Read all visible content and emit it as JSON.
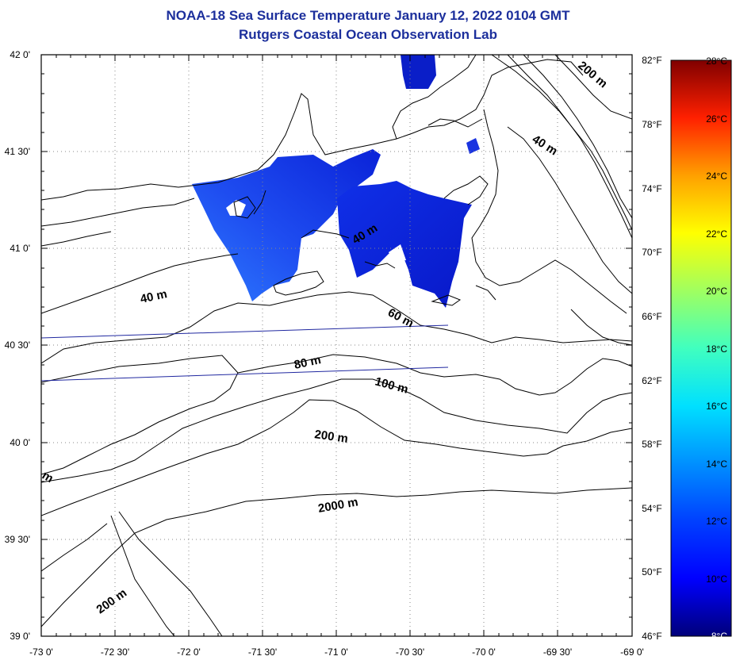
{
  "header": {
    "title": "NOAA-18 Sea Surface Temperature January 12, 2022 0104 GMT",
    "subtitle": "Rutgers Coastal Ocean Observation Lab"
  },
  "axes": {
    "lat_labels": [
      "42 0'",
      "41 30'",
      "41 0'",
      "40 30'",
      "40 0'",
      "39 30'",
      "39 0'"
    ],
    "lon_labels": [
      "-73 0'",
      "-72 30'",
      "-72 0'",
      "-71 30'",
      "-71 0'",
      "-70 30'",
      "-70 0'",
      "-69 30'",
      "-69 0'"
    ],
    "fahrenheit_labels": [
      "82°F",
      "78°F",
      "74°F",
      "70°F",
      "66°F",
      "62°F",
      "58°F",
      "54°F",
      "50°F",
      "46°F"
    ],
    "lat_range": [
      39.0,
      42.0
    ],
    "lon_range": [
      -73.0,
      -69.0
    ]
  },
  "colorbar": {
    "celsius_labels": [
      "28°C",
      "26°C",
      "24°C",
      "22°C",
      "20°C",
      "18°C",
      "16°C",
      "14°C",
      "12°C",
      "10°C",
      "8°C"
    ],
    "range_c": [
      8,
      28
    ],
    "range_f": [
      46,
      82
    ]
  },
  "contour_labels": [
    {
      "text": "200 m",
      "id": "ne"
    },
    {
      "text": "40 m",
      "id": "east"
    },
    {
      "text": "40 m",
      "id": "center"
    },
    {
      "text": "40 m",
      "id": "west"
    },
    {
      "text": "60 m",
      "id": "sixty"
    },
    {
      "text": "80 m",
      "id": "eighty"
    },
    {
      "text": "100 m",
      "id": "hundred"
    },
    {
      "text": "200 m",
      "id": "shelf"
    },
    {
      "text": "2000 m",
      "id": "deep"
    },
    {
      "text": "200 m",
      "id": "sw"
    },
    {
      "text": "m",
      "id": "edge"
    }
  ]
}
